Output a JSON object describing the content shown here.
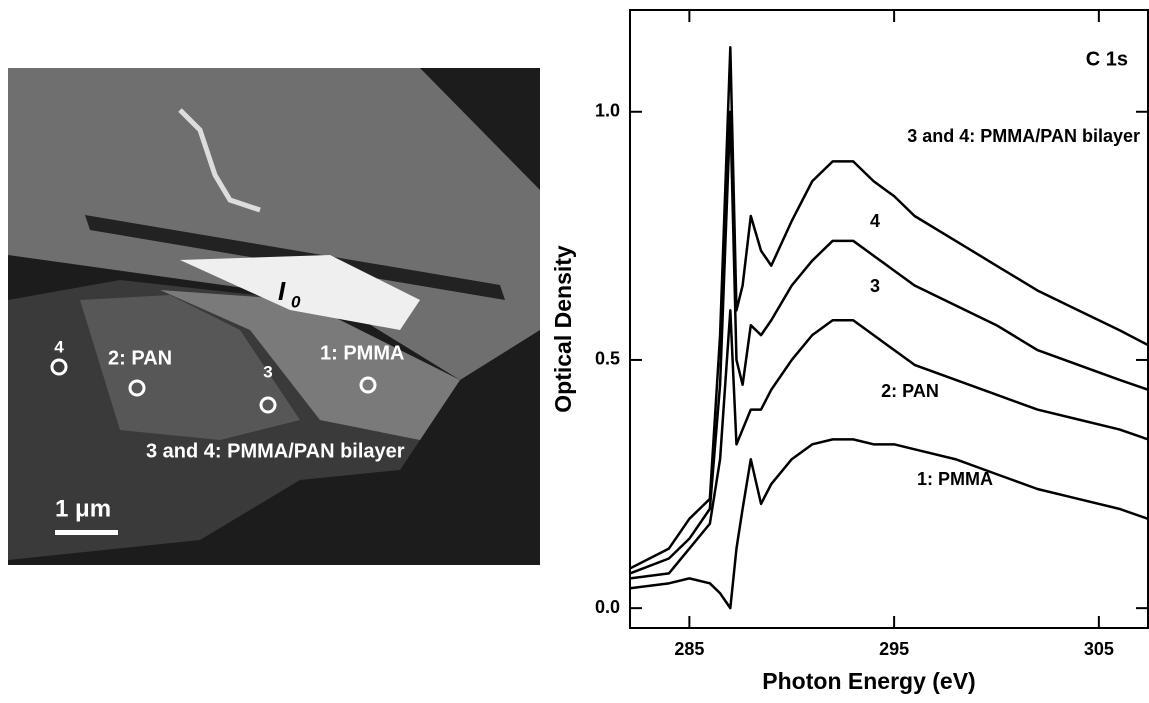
{
  "image": {
    "labels": {
      "spot4": "4",
      "pan": "2: PAN",
      "spot3": "3",
      "pmma": "1: PMMA",
      "bilayer": "3 and 4: PMMA/PAN bilayer",
      "scale": "1 μm",
      "i0": "I",
      "i0_sub": "0"
    }
  },
  "chart_data": {
    "type": "line",
    "title": "C 1s",
    "annotation": "3 and 4: PMMA/PAN bilayer",
    "x_label": "Photon Energy (eV)",
    "y_label": "Optical Density",
    "xlim": [
      282.1,
      307.4
    ],
    "ylim": [
      -0.04,
      1.205
    ],
    "xticks": [
      285,
      295,
      305
    ],
    "yticks": [
      {
        "value": 0,
        "label": "0.0"
      },
      {
        "value": 0.5,
        "label": "0.5"
      },
      {
        "value": 1,
        "label": "1.0"
      }
    ],
    "x": [
      282.1,
      284,
      285,
      286,
      286.5,
      287,
      287.3,
      287.6,
      288,
      288.5,
      289,
      290,
      291,
      292,
      293,
      294,
      295,
      296,
      298,
      300,
      302,
      304,
      306,
      307.4
    ],
    "series": [
      {
        "name": "1: PMMA",
        "color": "#000000",
        "values": [
          0.04,
          0.05,
          0.06,
          0.05,
          0.03,
          0.0,
          0.12,
          0.2,
          0.3,
          0.21,
          0.25,
          0.3,
          0.33,
          0.34,
          0.34,
          0.33,
          0.33,
          0.32,
          0.3,
          0.27,
          0.24,
          0.22,
          0.2,
          0.18
        ]
      },
      {
        "name": "2: PAN",
        "color": "#000000",
        "values": [
          0.06,
          0.07,
          0.12,
          0.17,
          0.3,
          0.6,
          0.33,
          0.36,
          0.4,
          0.4,
          0.44,
          0.5,
          0.55,
          0.58,
          0.58,
          0.55,
          0.52,
          0.49,
          0.46,
          0.43,
          0.4,
          0.38,
          0.36,
          0.34
        ]
      },
      {
        "name": "3",
        "color": "#000000",
        "values": [
          0.07,
          0.1,
          0.14,
          0.2,
          0.45,
          1.0,
          0.5,
          0.45,
          0.57,
          0.55,
          0.58,
          0.65,
          0.7,
          0.74,
          0.74,
          0.71,
          0.68,
          0.65,
          0.61,
          0.57,
          0.52,
          0.49,
          0.46,
          0.44
        ]
      },
      {
        "name": "4",
        "color": "#000000",
        "values": [
          0.08,
          0.12,
          0.18,
          0.22,
          0.55,
          1.13,
          0.6,
          0.65,
          0.79,
          0.72,
          0.69,
          0.78,
          0.86,
          0.9,
          0.9,
          0.86,
          0.83,
          0.79,
          0.74,
          0.69,
          0.64,
          0.6,
          0.56,
          0.53
        ]
      }
    ]
  }
}
